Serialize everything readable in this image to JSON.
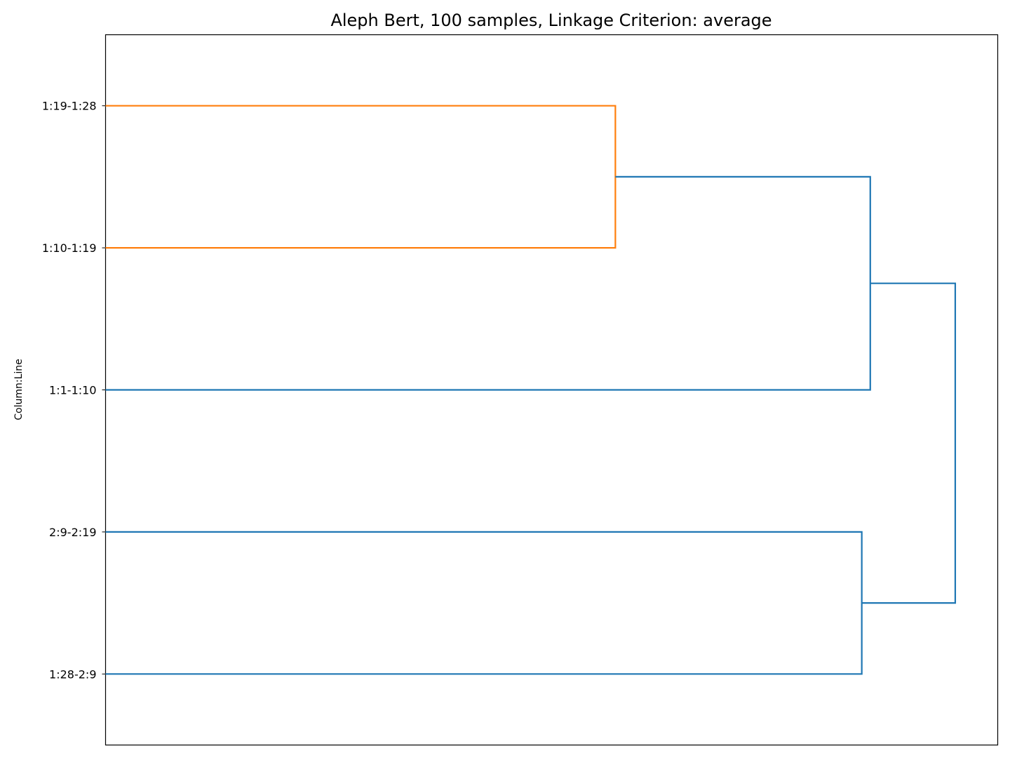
{
  "chart_data": {
    "type": "dendrogram",
    "title": "Aleph Bert, 100 samples, Linkage Criterion: average",
    "ylabel": "Column:Line",
    "orientation": "left",
    "leaves": [
      "1:19-1:28",
      "1:10-1:19",
      "1:1-1:10",
      "2:9-2:19",
      "1:28-2:9"
    ],
    "xlim": [
      0,
      1.05
    ],
    "merges": [
      {
        "a": "leaf:0",
        "b": "leaf:1",
        "distance": 0.6,
        "color": "#ff7f0e"
      },
      {
        "a": "leaf:3",
        "b": "leaf:4",
        "distance": 0.89,
        "color": "#1f77b4"
      },
      {
        "a": "merge:0",
        "b": "leaf:2",
        "distance": 0.9,
        "color": "#1f77b4"
      },
      {
        "a": "merge:2",
        "b": "merge:1",
        "distance": 1.0,
        "color": "#1f77b4"
      }
    ],
    "grid": false,
    "legend": "none"
  }
}
